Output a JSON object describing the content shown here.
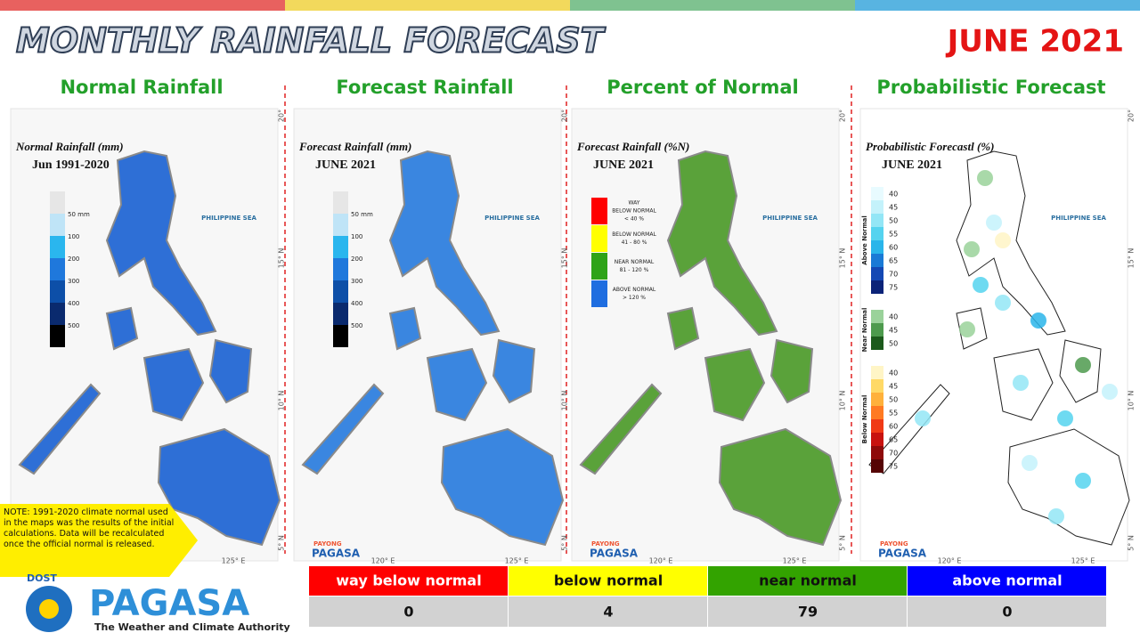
{
  "header": {
    "title": "MONTHLY RAINFALL FORECAST",
    "date": "JUNE 2021"
  },
  "panels": [
    {
      "title": "Normal Rainfall",
      "map_title": "Normal Rainfall (mm)",
      "map_period": "Jun 1991-2020",
      "legend": [
        "50 mm",
        "100",
        "200",
        "300",
        "400",
        "500"
      ]
    },
    {
      "title": "Forecast Rainfall",
      "map_title": "Forecast Rainfall (mm)",
      "map_period": "JUNE 2021",
      "legend": [
        "50 mm",
        "100",
        "200",
        "300",
        "400",
        "500"
      ]
    },
    {
      "title": "Percent of Normal",
      "map_title": "Forecast Rainfall (%N)",
      "map_period": "JUNE 2021",
      "legend": [
        [
          "WAY",
          "BELOW NORMAL",
          "< 40 %"
        ],
        [
          "BELOW NORMAL",
          "41 - 80 %"
        ],
        [
          "NEAR NORMAL",
          "81 - 120 %"
        ],
        [
          "ABOVE NORMAL",
          "> 120 %"
        ]
      ]
    },
    {
      "title": "Probabilistic Forecast",
      "map_title": "Probabilistic Forecastl (%)",
      "map_period": "JUNE 2021",
      "legend": [
        {
          "name": "Above Normal",
          "levels": [
            "40",
            "45",
            "50",
            "55",
            "60",
            "65",
            "70",
            "75"
          ]
        },
        {
          "name": "Near Normal",
          "levels": [
            "40",
            "45",
            "50"
          ]
        },
        {
          "name": "Below Normal",
          "levels": [
            "40",
            "45",
            "50",
            "55",
            "60",
            "65",
            "70",
            "75"
          ]
        }
      ]
    }
  ],
  "map_labels": {
    "sea": "PHILIPPINE SEA",
    "lat": [
      "20°",
      "15° N",
      "10° N",
      "5° N"
    ],
    "lon": [
      "120° E",
      "125° E"
    ]
  },
  "note": "NOTE: 1991-2020 climate normal used in the maps was the results of the initial calculations. Data will be recalculated once the official normal is released.",
  "summary_table": {
    "headers": [
      "way below normal",
      "below normal",
      "near normal",
      "above normal"
    ],
    "counts": [
      0,
      4,
      79,
      0
    ]
  },
  "logo": {
    "dost": "DOST",
    "payong": "PAYONG",
    "name": "PAGASA",
    "tagline": "The Weather and Climate Authority"
  }
}
